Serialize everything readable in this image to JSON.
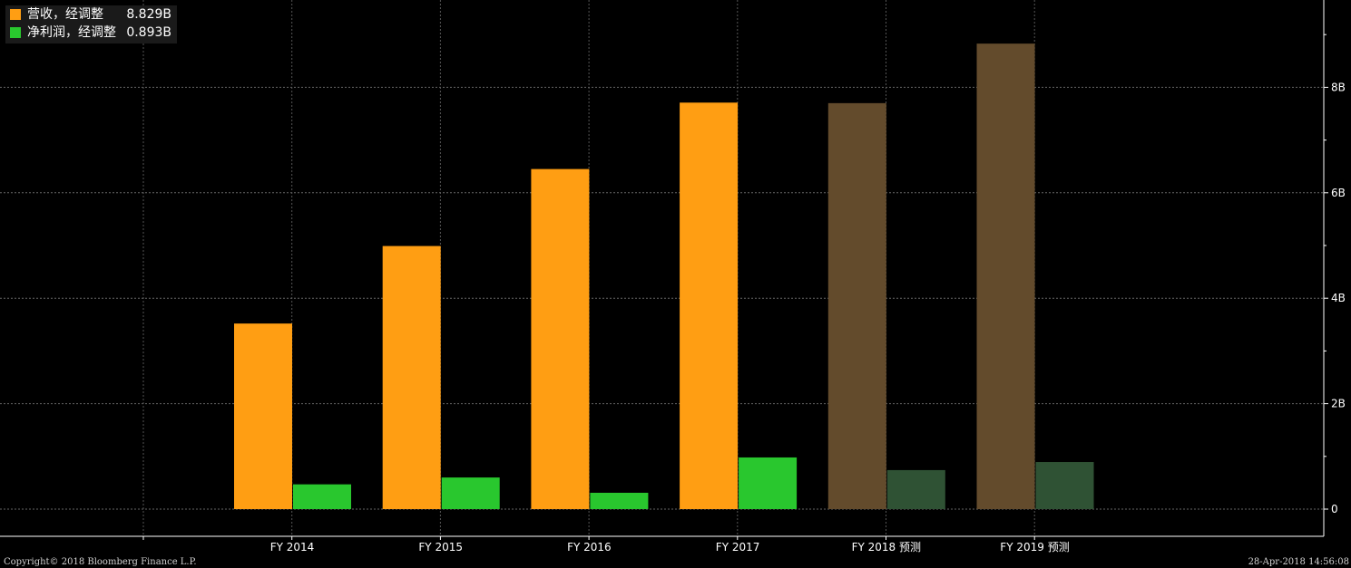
{
  "legend": {
    "items": [
      {
        "label": "营收，经调整",
        "value": "8.829B",
        "color": "#ff9e13"
      },
      {
        "label": "净利润，经调整",
        "value": "0.893B",
        "color": "#29c72e"
      }
    ]
  },
  "footer": {
    "copyright": "Copyright© 2018 Bloomberg Finance L.P.",
    "timestamp": "28-Apr-2018 14:56:08"
  },
  "chart_data": {
    "type": "bar",
    "categories": [
      "FY 2014",
      "FY 2015",
      "FY 2016",
      "FY 2017",
      "FY 2018 预测",
      "FY 2019 预测"
    ],
    "estimated": [
      false,
      false,
      false,
      false,
      true,
      true
    ],
    "series": [
      {
        "name": "营收，经调整",
        "values": [
          3.52,
          4.99,
          6.45,
          7.71,
          7.7,
          8.829
        ],
        "color": "#ff9e13",
        "estimate_color": "#634b2c"
      },
      {
        "name": "净利润，经调整",
        "values": [
          0.47,
          0.6,
          0.31,
          0.98,
          0.74,
          0.893
        ],
        "color": "#29c72e",
        "estimate_color": "#2f5234"
      }
    ],
    "ylim": [
      0,
      9
    ],
    "yticks": [
      {
        "value": 0,
        "label": "0"
      },
      {
        "value": 2,
        "label": "2B"
      },
      {
        "value": 4,
        "label": "4B"
      },
      {
        "value": 6,
        "label": "6B"
      },
      {
        "value": 8,
        "label": "8B"
      }
    ],
    "minor_yticks": [
      1,
      3,
      5,
      7,
      9
    ],
    "grid": true,
    "legend_position": "top-left"
  }
}
